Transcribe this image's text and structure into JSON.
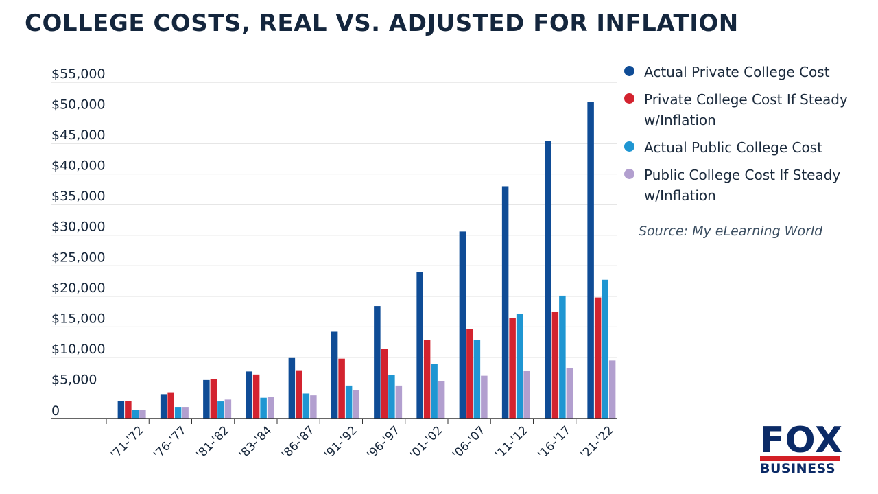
{
  "title": "COLLEGE COSTS, REAL VS. ADJUSTED FOR INFLATION",
  "source": "Source: My eLearning World",
  "logo": {
    "top": "FOX",
    "bottom": "BUSINESS"
  },
  "colors": {
    "actual_private": "#0f4c96",
    "private_inflation": "#d3232f",
    "actual_public": "#1f96d2",
    "public_inflation": "#b29fcf",
    "grid": "#d7d7d7",
    "text": "#16263a"
  },
  "chart_data": {
    "type": "bar",
    "title": "COLLEGE COSTS, REAL VS. ADJUSTED FOR INFLATION",
    "xlabel": "",
    "ylabel": "",
    "ylim": [
      0,
      55000
    ],
    "yticks": [
      0,
      5000,
      10000,
      15000,
      20000,
      25000,
      30000,
      35000,
      40000,
      45000,
      50000,
      55000
    ],
    "ytick_labels": [
      "0",
      "$5,000",
      "$10,000",
      "$15,000",
      "$20,000",
      "$25,000",
      "$30,000",
      "$35,000",
      "$40,000",
      "$45,000",
      "$50,000",
      "$55,000"
    ],
    "grid": true,
    "legend_position": "right",
    "categories": [
      "'71-'72",
      "'76-'77",
      "'81-'82",
      "'83-'84",
      "'86-'87",
      "'91-'92",
      "'96-'97",
      "'01-'02",
      "'06-'07",
      "'11-'12",
      "'16-'17",
      "'21-'22"
    ],
    "series": [
      {
        "name": "Actual Private College Cost",
        "color": "#0f4c96",
        "values": [
          2900,
          4000,
          6300,
          7700,
          9900,
          14200,
          18400,
          24000,
          30600,
          38000,
          45400,
          51800
        ]
      },
      {
        "name": "Private College Cost If Steady w/Inflation",
        "color": "#d3232f",
        "values": [
          2900,
          4200,
          6500,
          7200,
          7900,
          9800,
          11400,
          12800,
          14600,
          16400,
          17400,
          19800
        ]
      },
      {
        "name": "Actual Public College Cost",
        "color": "#1f96d2",
        "values": [
          1400,
          1900,
          2800,
          3400,
          4100,
          5400,
          7100,
          8900,
          12800,
          17100,
          20100,
          22700
        ]
      },
      {
        "name": "Public College Cost If Steady w/Inflation",
        "color": "#b29fcf",
        "values": [
          1400,
          1900,
          3100,
          3500,
          3800,
          4700,
          5400,
          6100,
          7000,
          7800,
          8300,
          9500
        ]
      }
    ]
  }
}
